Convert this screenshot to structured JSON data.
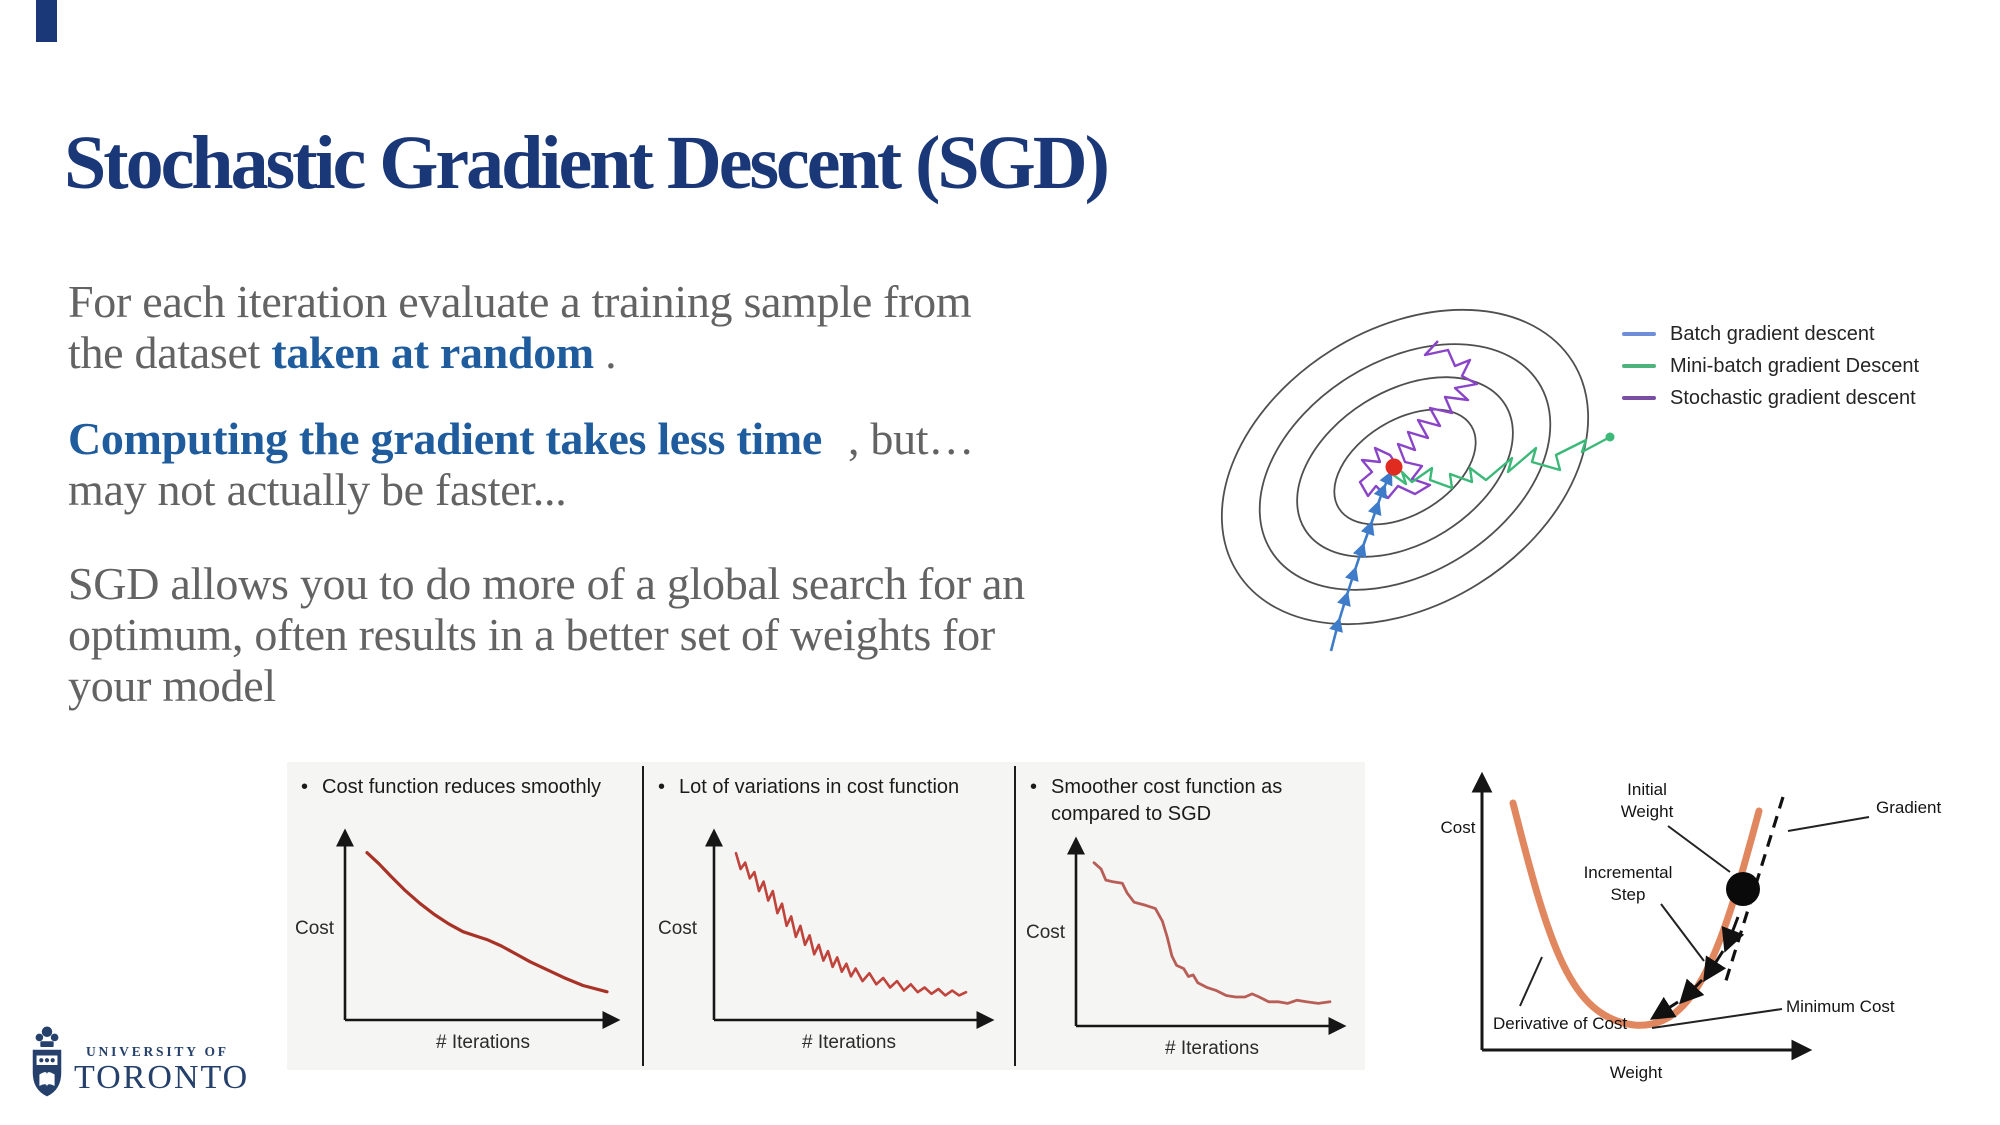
{
  "slide": {
    "title": "Stochastic Gradient Descent (SGD)",
    "accent_color": "#1a3778",
    "body_blue": "#1f5c9e"
  },
  "body": {
    "p1_line1": "For each iteration evaluate a training sample from",
    "p1_line2_prefix": "the dataset ",
    "p1_line2_bold": "taken at random",
    "p1_line2_suffix": " .",
    "p2_line1_bold": "Computing the gradient takes less time",
    "p2_line1_suffix": ", but…",
    "p2_line2": "may not actually be faster...",
    "p3_line1": "SGD allows you to do more of a global search for an",
    "p3_line2": "optimum, often results in a better set of weights for",
    "p3_line3": "your model"
  },
  "chart_data": [
    {
      "id": "batch-gd-cost-curve",
      "type": "line",
      "title_lines": [
        "Cost function reduces smoothly"
      ],
      "xlabel": "# Iterations",
      "ylabel": "Cost",
      "color": "#a93226",
      "points": [
        [
          0,
          0.97
        ],
        [
          0.05,
          0.9
        ],
        [
          0.1,
          0.82
        ],
        [
          0.16,
          0.73
        ],
        [
          0.22,
          0.65
        ],
        [
          0.28,
          0.58
        ],
        [
          0.34,
          0.52
        ],
        [
          0.4,
          0.47
        ],
        [
          0.46,
          0.44
        ],
        [
          0.5,
          0.42
        ],
        [
          0.56,
          0.38
        ],
        [
          0.62,
          0.33
        ],
        [
          0.68,
          0.28
        ],
        [
          0.75,
          0.23
        ],
        [
          0.82,
          0.18
        ],
        [
          0.9,
          0.13
        ],
        [
          1,
          0.09
        ]
      ]
    },
    {
      "id": "sgd-cost-curve",
      "type": "line",
      "title_lines": [
        "Lot of variations in cost function"
      ],
      "xlabel": "# Iterations",
      "ylabel": "Cost",
      "color": "#c0443c",
      "points": [
        [
          0,
          0.98
        ],
        [
          0.02,
          0.88
        ],
        [
          0.04,
          0.92
        ],
        [
          0.06,
          0.82
        ],
        [
          0.08,
          0.86
        ],
        [
          0.1,
          0.74
        ],
        [
          0.12,
          0.8
        ],
        [
          0.14,
          0.68
        ],
        [
          0.16,
          0.74
        ],
        [
          0.18,
          0.6
        ],
        [
          0.2,
          0.66
        ],
        [
          0.22,
          0.52
        ],
        [
          0.24,
          0.58
        ],
        [
          0.26,
          0.45
        ],
        [
          0.28,
          0.52
        ],
        [
          0.3,
          0.4
        ],
        [
          0.32,
          0.46
        ],
        [
          0.34,
          0.34
        ],
        [
          0.36,
          0.4
        ],
        [
          0.38,
          0.3
        ],
        [
          0.4,
          0.36
        ],
        [
          0.42,
          0.26
        ],
        [
          0.44,
          0.32
        ],
        [
          0.46,
          0.23
        ],
        [
          0.48,
          0.28
        ],
        [
          0.5,
          0.2
        ],
        [
          0.52,
          0.25
        ],
        [
          0.55,
          0.17
        ],
        [
          0.58,
          0.22
        ],
        [
          0.61,
          0.15
        ],
        [
          0.64,
          0.19
        ],
        [
          0.67,
          0.13
        ],
        [
          0.7,
          0.17
        ],
        [
          0.73,
          0.11
        ],
        [
          0.76,
          0.15
        ],
        [
          0.79,
          0.1
        ],
        [
          0.82,
          0.13
        ],
        [
          0.85,
          0.09
        ],
        [
          0.88,
          0.12
        ],
        [
          0.91,
          0.08
        ],
        [
          0.94,
          0.11
        ],
        [
          0.97,
          0.08
        ],
        [
          1,
          0.1
        ]
      ]
    },
    {
      "id": "minibatch-gd-cost-curve",
      "type": "line",
      "title_lines": [
        "Smoother cost function as",
        "compared to SGD"
      ],
      "xlabel": "# Iterations",
      "ylabel": "Cost",
      "color": "#b85e57",
      "points": [
        [
          0,
          0.97
        ],
        [
          0.03,
          0.93
        ],
        [
          0.05,
          0.86
        ],
        [
          0.08,
          0.85
        ],
        [
          0.12,
          0.84
        ],
        [
          0.14,
          0.78
        ],
        [
          0.17,
          0.72
        ],
        [
          0.22,
          0.7
        ],
        [
          0.26,
          0.68
        ],
        [
          0.29,
          0.6
        ],
        [
          0.31,
          0.5
        ],
        [
          0.33,
          0.38
        ],
        [
          0.35,
          0.32
        ],
        [
          0.38,
          0.3
        ],
        [
          0.4,
          0.25
        ],
        [
          0.42,
          0.26
        ],
        [
          0.44,
          0.21
        ],
        [
          0.48,
          0.18
        ],
        [
          0.52,
          0.16
        ],
        [
          0.56,
          0.13
        ],
        [
          0.6,
          0.12
        ],
        [
          0.64,
          0.12
        ],
        [
          0.67,
          0.14
        ],
        [
          0.7,
          0.12
        ],
        [
          0.74,
          0.09
        ],
        [
          0.78,
          0.09
        ],
        [
          0.82,
          0.08
        ],
        [
          0.86,
          0.1
        ],
        [
          0.9,
          0.09
        ],
        [
          0.95,
          0.08
        ],
        [
          1,
          0.09
        ]
      ]
    },
    {
      "id": "gradient-descent-trajectories",
      "type": "contour-diagram",
      "legend": [
        {
          "label": "Batch gradient descent",
          "color": "#6e8fd8"
        },
        {
          "label": "Mini-batch gradient Descent",
          "color": "#4db37a"
        },
        {
          "label": "Stochastic gradient descent",
          "color": "#7a4fa3"
        }
      ],
      "minimum_color": "#e02b20",
      "paths": {
        "batch": {
          "color": "#3e7bc8",
          "points": [
            [
              1331,
              651
            ],
            [
              1338,
              624
            ],
            [
              1346,
              598
            ],
            [
              1354,
              573
            ],
            [
              1362,
              549
            ],
            [
              1370,
              527
            ],
            [
              1377,
              507
            ],
            [
              1383,
              490
            ],
            [
              1389,
              477
            ],
            [
              1393,
              469
            ]
          ]
        },
        "minibatch": {
          "color": "#3cb878",
          "points": [
            [
              1610,
              437
            ],
            [
              1582,
              452
            ],
            [
              1586,
              440
            ],
            [
              1556,
              455
            ],
            [
              1560,
              470
            ],
            [
              1532,
              462
            ],
            [
              1536,
              448
            ],
            [
              1508,
              472
            ],
            [
              1512,
              458
            ],
            [
              1486,
              480
            ],
            [
              1470,
              468
            ],
            [
              1472,
              482
            ],
            [
              1450,
              474
            ],
            [
              1452,
              488
            ],
            [
              1430,
              480
            ],
            [
              1432,
              468
            ],
            [
              1412,
              482
            ],
            [
              1402,
              472
            ],
            [
              1406,
              484
            ],
            [
              1392,
              474
            ],
            [
              1398,
              466
            ]
          ]
        },
        "stochastic": {
          "color": "#8a44c8",
          "points": [
            [
              1438,
              341
            ],
            [
              1425,
              355
            ],
            [
              1448,
              350
            ],
            [
              1455,
              366
            ],
            [
              1470,
              360
            ],
            [
              1462,
              376
            ],
            [
              1477,
              384
            ],
            [
              1455,
              388
            ],
            [
              1468,
              400
            ],
            [
              1445,
              397
            ],
            [
              1452,
              413
            ],
            [
              1430,
              408
            ],
            [
              1440,
              426
            ],
            [
              1418,
              420
            ],
            [
              1428,
              438
            ],
            [
              1408,
              432
            ],
            [
              1415,
              450
            ],
            [
              1398,
              444
            ],
            [
              1405,
              462
            ],
            [
              1422,
              466
            ],
            [
              1412,
              479
            ],
            [
              1430,
              485
            ],
            [
              1415,
              494
            ],
            [
              1398,
              486
            ],
            [
              1388,
              498
            ],
            [
              1376,
              486
            ],
            [
              1368,
              496
            ],
            [
              1360,
              482
            ],
            [
              1372,
              472
            ],
            [
              1362,
              460
            ],
            [
              1380,
              462
            ],
            [
              1375,
              448
            ],
            [
              1390,
              455
            ],
            [
              1396,
              464
            ],
            [
              1388,
              470
            ]
          ]
        }
      }
    },
    {
      "id": "gradient-descent-weight-diagram",
      "type": "diagram",
      "curve_color": "#e1875f",
      "labels": {
        "ylabel": "Cost",
        "xlabel": "Weight",
        "initial_weight": [
          "Initial",
          "Weight"
        ],
        "gradient": "Gradient",
        "incremental_step": [
          "Incremental",
          "Step"
        ],
        "derivative_of_cost": "Derivative of Cost",
        "minimum_cost": "Minimum Cost"
      }
    }
  ],
  "logo": {
    "line1": "UNIVERSITY OF",
    "line2": "TORONTO"
  }
}
